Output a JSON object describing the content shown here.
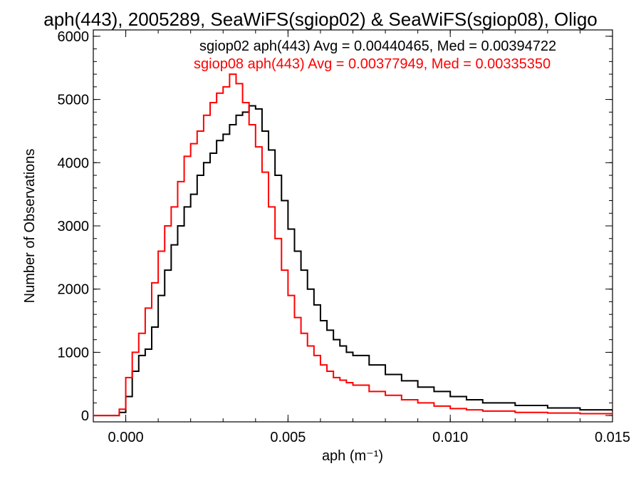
{
  "chart_data": {
    "type": "line",
    "title": "aph(443), 2005289, SeaWiFS(sgiop02) & SeaWiFS(sgiop08), Oligo",
    "xlabel": "aph (m⁻¹)",
    "ylabel": "Number of Observations",
    "xlim": [
      -0.001,
      0.015
    ],
    "ylim": [
      -100,
      6100
    ],
    "x_ticks": [
      0.0,
      0.005,
      0.01,
      0.015
    ],
    "x_tick_labels": [
      "0.000",
      "0.005",
      "0.010",
      "0.015"
    ],
    "y_ticks": [
      0,
      1000,
      2000,
      3000,
      4000,
      5000,
      6000
    ],
    "y_tick_labels": [
      "0",
      "1000",
      "2000",
      "3000",
      "4000",
      "5000",
      "6000"
    ],
    "grid": false,
    "step": true,
    "series": [
      {
        "name": "sgiop02",
        "color": "#000000",
        "legend": "sgiop02 aph(443) Avg = 0.00440465, Med = 0.00394722",
        "x": [
          -0.0004,
          -0.0002,
          0.0,
          0.0002,
          0.0004,
          0.0006,
          0.0008,
          0.001,
          0.0012,
          0.0014,
          0.0016,
          0.0018,
          0.002,
          0.0022,
          0.0024,
          0.0026,
          0.0028,
          0.003,
          0.0032,
          0.0034,
          0.0036,
          0.0038,
          0.004,
          0.0042,
          0.0044,
          0.0046,
          0.0048,
          0.005,
          0.0052,
          0.0054,
          0.0056,
          0.0058,
          0.006,
          0.0062,
          0.0064,
          0.0066,
          0.0068,
          0.007,
          0.0075,
          0.008,
          0.0085,
          0.009,
          0.0095,
          0.01,
          0.0105,
          0.011,
          0.012,
          0.013,
          0.014,
          0.015
        ],
        "values": [
          0,
          50,
          300,
          700,
          950,
          1050,
          1400,
          1900,
          2300,
          2700,
          3000,
          3300,
          3500,
          3800,
          4000,
          4150,
          4350,
          4450,
          4600,
          4750,
          4800,
          4900,
          4850,
          4500,
          4200,
          3800,
          3400,
          2950,
          2600,
          2300,
          2000,
          1750,
          1500,
          1350,
          1200,
          1100,
          1000,
          950,
          800,
          650,
          550,
          450,
          380,
          300,
          250,
          200,
          160,
          120,
          90,
          70
        ]
      },
      {
        "name": "sgiop08",
        "color": "#ff0000",
        "legend": "sgiop08 aph(443) Avg = 0.00377949, Med = 0.00335350",
        "x": [
          -0.0004,
          -0.0002,
          0.0,
          0.0002,
          0.0004,
          0.0006,
          0.0008,
          0.001,
          0.0012,
          0.0014,
          0.0016,
          0.0018,
          0.002,
          0.0022,
          0.0024,
          0.0026,
          0.0028,
          0.003,
          0.0032,
          0.0034,
          0.0036,
          0.0038,
          0.004,
          0.0042,
          0.0044,
          0.0046,
          0.0048,
          0.005,
          0.0052,
          0.0054,
          0.0056,
          0.0058,
          0.006,
          0.0062,
          0.0064,
          0.0066,
          0.0068,
          0.007,
          0.0075,
          0.008,
          0.0085,
          0.009,
          0.0095,
          0.01,
          0.0105,
          0.011,
          0.012,
          0.013,
          0.014,
          0.015
        ],
        "values": [
          0,
          100,
          600,
          1000,
          1300,
          1700,
          2100,
          2600,
          3000,
          3300,
          3700,
          4100,
          4300,
          4500,
          4750,
          4950,
          5100,
          5200,
          5400,
          5250,
          4950,
          4600,
          4250,
          3850,
          3300,
          2800,
          2300,
          1900,
          1550,
          1300,
          1100,
          950,
          800,
          700,
          600,
          560,
          520,
          480,
          380,
          320,
          250,
          200,
          150,
          110,
          90,
          70,
          50,
          40,
          30,
          25
        ]
      }
    ]
  }
}
